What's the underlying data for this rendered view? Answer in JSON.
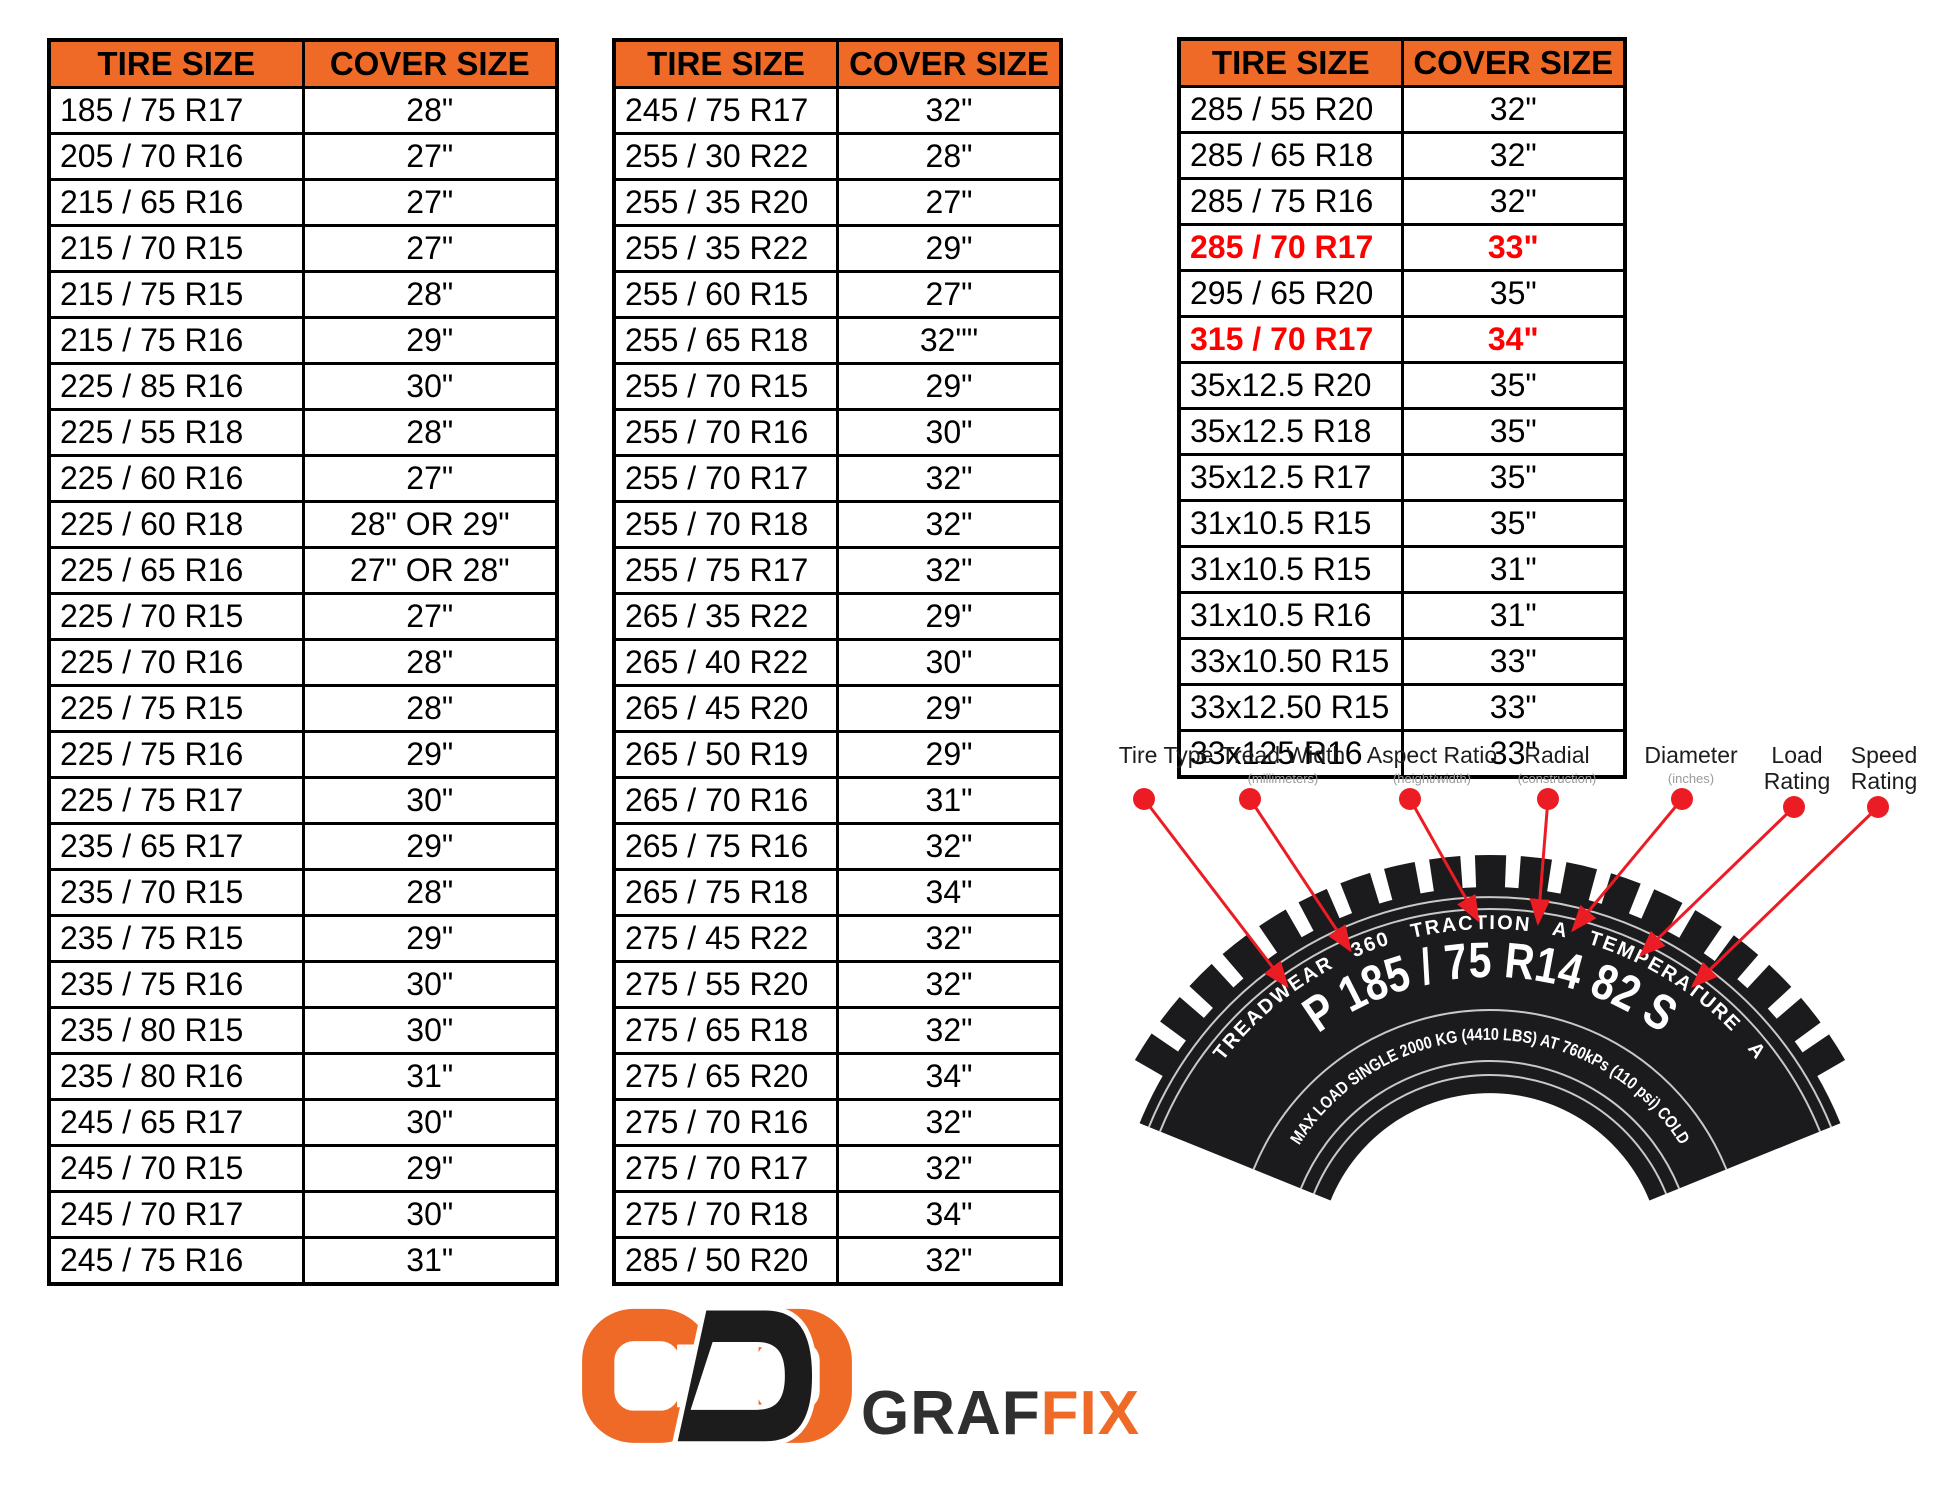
{
  "colors": {
    "header_orange": "#EF6A26",
    "highlight_red": "#FF0000",
    "arrow_red": "#EC1C24",
    "tire_black": "#1b1b1d"
  },
  "chart_data": [
    {
      "type": "table",
      "columns": [
        "TIRE SIZE",
        "COVER SIZE"
      ],
      "rows": [
        [
          "185 / 75 R17",
          "28\""
        ],
        [
          "205 / 70 R16",
          "27\""
        ],
        [
          "215 / 65 R16",
          "27\""
        ],
        [
          "215 / 70 R15",
          "27\""
        ],
        [
          "215 / 75 R15",
          "28\""
        ],
        [
          "215 / 75 R16",
          "29\""
        ],
        [
          "225 / 85 R16",
          "30\""
        ],
        [
          "225 / 55 R18",
          "28\""
        ],
        [
          "225 / 60 R16",
          "27\""
        ],
        [
          "225 / 60 R18",
          "28\" OR 29\""
        ],
        [
          "225 / 65 R16",
          "27\" OR 28\""
        ],
        [
          "225 / 70 R15",
          "27\""
        ],
        [
          "225 / 70 R16",
          "28\""
        ],
        [
          "225 / 75 R15",
          "28\""
        ],
        [
          "225 / 75 R16",
          "29\""
        ],
        [
          "225 / 75 R17",
          "30\""
        ],
        [
          "235 / 65 R17",
          "29\""
        ],
        [
          "235 / 70 R15",
          "28\""
        ],
        [
          "235 / 75 R15",
          "29\""
        ],
        [
          "235 / 75 R16",
          "30\""
        ],
        [
          "235 / 80 R15",
          "30\""
        ],
        [
          "235 / 80 R16",
          "31\""
        ],
        [
          "245 / 65 R17",
          "30\""
        ],
        [
          "245 / 70 R15",
          "29\""
        ],
        [
          "245 / 70 R17",
          "30\""
        ],
        [
          "245 / 75 R16",
          "31\""
        ]
      ]
    },
    {
      "type": "table",
      "columns": [
        "TIRE SIZE",
        "COVER SIZE"
      ],
      "rows": [
        [
          "245 / 75 R17",
          "32\""
        ],
        [
          "255 / 30 R22",
          "28\""
        ],
        [
          "255 / 35 R20",
          "27\""
        ],
        [
          "255 / 35 R22",
          "29\""
        ],
        [
          "255 / 60 R15",
          "27\""
        ],
        [
          "255 / 65 R18",
          "32\"\""
        ],
        [
          "255 / 70 R15",
          "29\""
        ],
        [
          "255 / 70 R16",
          "30\""
        ],
        [
          "255 / 70 R17",
          "32\""
        ],
        [
          "255 / 70 R18",
          "32\""
        ],
        [
          "255 / 75 R17",
          "32\""
        ],
        [
          "265 / 35 R22",
          "29\""
        ],
        [
          "265 / 40 R22",
          "30\""
        ],
        [
          "265 / 45 R20",
          "29\""
        ],
        [
          "265 / 50 R19",
          "29\""
        ],
        [
          "265 / 70 R16",
          "31\""
        ],
        [
          "265 / 75 R16",
          "32\""
        ],
        [
          "265 / 75 R18",
          "34\""
        ],
        [
          "275 / 45 R22",
          "32\""
        ],
        [
          "275 / 55 R20",
          "32\""
        ],
        [
          "275 / 65 R18",
          "32\""
        ],
        [
          "275 / 65 R20",
          "34\""
        ],
        [
          "275 / 70 R16",
          "32\""
        ],
        [
          "275 / 70 R17",
          "32\""
        ],
        [
          "275 / 70 R18",
          "34\""
        ],
        [
          "285 / 50 R20",
          "32\""
        ]
      ]
    },
    {
      "type": "table",
      "columns": [
        "TIRE SIZE",
        "COVER SIZE"
      ],
      "highlight_rows": [
        3,
        5
      ],
      "highlight_color": "#FF0000",
      "rows": [
        [
          "285 / 55 R20",
          "32\""
        ],
        [
          "285 / 65 R18",
          "32\""
        ],
        [
          "285 / 75 R16",
          "32\""
        ],
        [
          "285 / 70 R17",
          "33\""
        ],
        [
          "295 / 65 R20",
          "35\""
        ],
        [
          "315 / 70 R17",
          "34\""
        ],
        [
          "35x12.5 R20",
          "35\""
        ],
        [
          "35x12.5 R18",
          "35\""
        ],
        [
          "35x12.5 R17",
          "35\""
        ],
        [
          "31x10.5 R15",
          "35\""
        ],
        [
          "31x10.5 R15",
          "31\""
        ],
        [
          "31x10.5 R16",
          "31\""
        ],
        [
          "33x10.50 R15",
          "33\""
        ],
        [
          "33x12.50 R15",
          "33\""
        ],
        [
          "33x125 R16",
          "33\""
        ]
      ]
    }
  ],
  "diagram": {
    "labels": [
      {
        "title": "Tire Type",
        "sub": ""
      },
      {
        "title": "Tread Width",
        "sub": "(millimeters)"
      },
      {
        "title": "Aspect Ratio",
        "sub": "(height/width)"
      },
      {
        "title": "Radial",
        "sub": "(construction)"
      },
      {
        "title": "Diameter",
        "sub": "(inches)"
      },
      {
        "title": "Load Rating",
        "sub": ""
      },
      {
        "title": "Speed Rating",
        "sub": ""
      }
    ],
    "tire_markings": {
      "uniformity": "TREADWEAR 360 TRACTION A TEMPERATURE A",
      "size_code": "P 185 / 75 R14 82 S",
      "max_load": "MAX LOAD SINGLE 2000 KG (4410 LBS) AT 760kPs (110 psi) COLD"
    }
  },
  "logo": {
    "brand_dark": "GRAF",
    "brand_accent": "FIX"
  }
}
